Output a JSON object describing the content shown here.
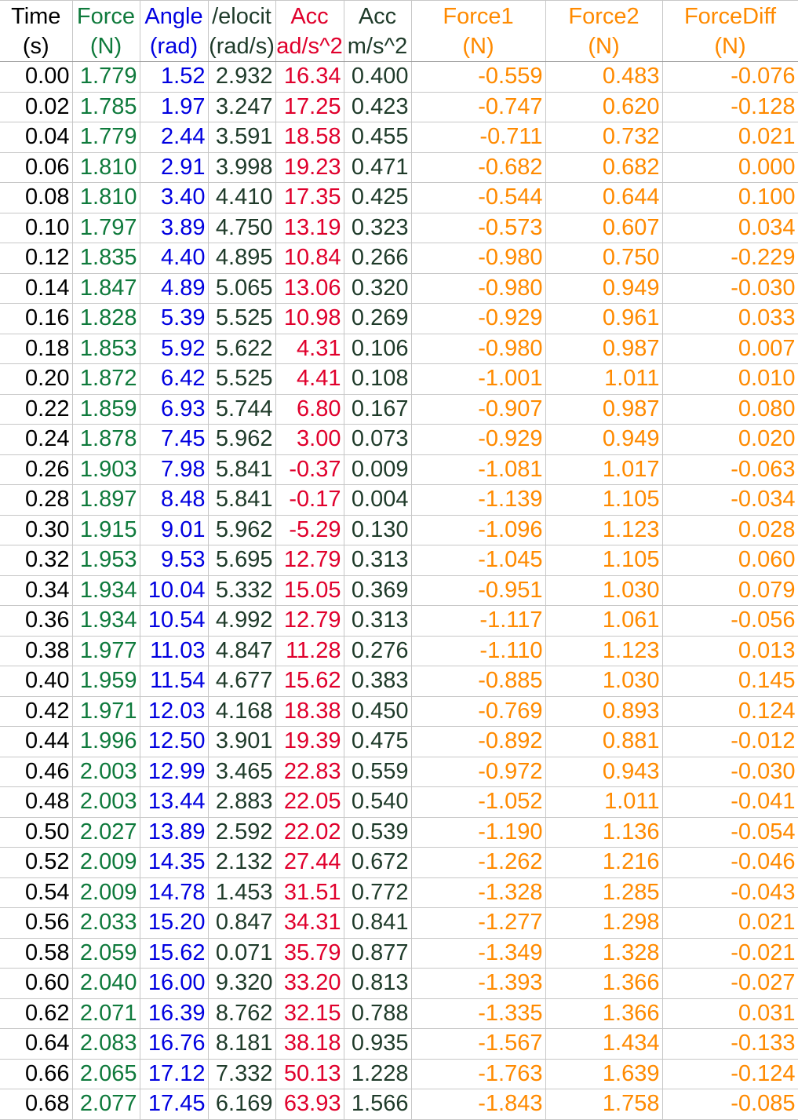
{
  "columns": [
    {
      "key": "time",
      "line1": "Time",
      "line2": "(s)",
      "color": "#000000"
    },
    {
      "key": "force",
      "line1": "Force",
      "line2": "(N)",
      "color": "#0f7a3c"
    },
    {
      "key": "angle",
      "line1": "Angle",
      "line2": "(rad)",
      "color": "#0000e0"
    },
    {
      "key": "velocity",
      "line1": "/elocit",
      "line2": "(rad/s)",
      "color": "#1f3b2a"
    },
    {
      "key": "acc_ang",
      "line1": "Acc",
      "line2": "ad/s^2",
      "color": "#e0002c"
    },
    {
      "key": "acc_lin",
      "line1": "Acc",
      "line2": "m/s^2",
      "color": "#1f3b2a"
    },
    {
      "key": "force1",
      "line1": "Force1",
      "line2": "(N)",
      "color": "#ff8a00"
    },
    {
      "key": "force2",
      "line1": "Force2",
      "line2": "(N)",
      "color": "#ff8a00"
    },
    {
      "key": "forcediff",
      "line1": "ForceDiff",
      "line2": "(N)",
      "color": "#ff8a00"
    }
  ],
  "rows": [
    [
      "0.00",
      "1.779",
      "1.52",
      "2.932",
      "16.34",
      "0.400",
      "-0.559",
      "0.483",
      "-0.076"
    ],
    [
      "0.02",
      "1.785",
      "1.97",
      "3.247",
      "17.25",
      "0.423",
      "-0.747",
      "0.620",
      "-0.128"
    ],
    [
      "0.04",
      "1.779",
      "2.44",
      "3.591",
      "18.58",
      "0.455",
      "-0.711",
      "0.732",
      "0.021"
    ],
    [
      "0.06",
      "1.810",
      "2.91",
      "3.998",
      "19.23",
      "0.471",
      "-0.682",
      "0.682",
      "0.000"
    ],
    [
      "0.08",
      "1.810",
      "3.40",
      "4.410",
      "17.35",
      "0.425",
      "-0.544",
      "0.644",
      "0.100"
    ],
    [
      "0.10",
      "1.797",
      "3.89",
      "4.750",
      "13.19",
      "0.323",
      "-0.573",
      "0.607",
      "0.034"
    ],
    [
      "0.12",
      "1.835",
      "4.40",
      "4.895",
      "10.84",
      "0.266",
      "-0.980",
      "0.750",
      "-0.229"
    ],
    [
      "0.14",
      "1.847",
      "4.89",
      "5.065",
      "13.06",
      "0.320",
      "-0.980",
      "0.949",
      "-0.030"
    ],
    [
      "0.16",
      "1.828",
      "5.39",
      "5.525",
      "10.98",
      "0.269",
      "-0.929",
      "0.961",
      "0.033"
    ],
    [
      "0.18",
      "1.853",
      "5.92",
      "5.622",
      "4.31",
      "0.106",
      "-0.980",
      "0.987",
      "0.007"
    ],
    [
      "0.20",
      "1.872",
      "6.42",
      "5.525",
      "4.41",
      "0.108",
      "-1.001",
      "1.011",
      "0.010"
    ],
    [
      "0.22",
      "1.859",
      "6.93",
      "5.744",
      "6.80",
      "0.167",
      "-0.907",
      "0.987",
      "0.080"
    ],
    [
      "0.24",
      "1.878",
      "7.45",
      "5.962",
      "3.00",
      "0.073",
      "-0.929",
      "0.949",
      "0.020"
    ],
    [
      "0.26",
      "1.903",
      "7.98",
      "5.841",
      "-0.37",
      "0.009",
      "-1.081",
      "1.017",
      "-0.063"
    ],
    [
      "0.28",
      "1.897",
      "8.48",
      "5.841",
      "-0.17",
      "0.004",
      "-1.139",
      "1.105",
      "-0.034"
    ],
    [
      "0.30",
      "1.915",
      "9.01",
      "5.962",
      "-5.29",
      "0.130",
      "-1.096",
      "1.123",
      "0.028"
    ],
    [
      "0.32",
      "1.953",
      "9.53",
      "5.695",
      "12.79",
      "0.313",
      "-1.045",
      "1.105",
      "0.060"
    ],
    [
      "0.34",
      "1.934",
      "10.04",
      "5.332",
      "15.05",
      "0.369",
      "-0.951",
      "1.030",
      "0.079"
    ],
    [
      "0.36",
      "1.934",
      "10.54",
      "4.992",
      "12.79",
      "0.313",
      "-1.117",
      "1.061",
      "-0.056"
    ],
    [
      "0.38",
      "1.977",
      "11.03",
      "4.847",
      "11.28",
      "0.276",
      "-1.110",
      "1.123",
      "0.013"
    ],
    [
      "0.40",
      "1.959",
      "11.54",
      "4.677",
      "15.62",
      "0.383",
      "-0.885",
      "1.030",
      "0.145"
    ],
    [
      "0.42",
      "1.971",
      "12.03",
      "4.168",
      "18.38",
      "0.450",
      "-0.769",
      "0.893",
      "0.124"
    ],
    [
      "0.44",
      "1.996",
      "12.50",
      "3.901",
      "19.39",
      "0.475",
      "-0.892",
      "0.881",
      "-0.012"
    ],
    [
      "0.46",
      "2.003",
      "12.99",
      "3.465",
      "22.83",
      "0.559",
      "-0.972",
      "0.943",
      "-0.030"
    ],
    [
      "0.48",
      "2.003",
      "13.44",
      "2.883",
      "22.05",
      "0.540",
      "-1.052",
      "1.011",
      "-0.041"
    ],
    [
      "0.50",
      "2.027",
      "13.89",
      "2.592",
      "22.02",
      "0.539",
      "-1.190",
      "1.136",
      "-0.054"
    ],
    [
      "0.52",
      "2.009",
      "14.35",
      "2.132",
      "27.44",
      "0.672",
      "-1.262",
      "1.216",
      "-0.046"
    ],
    [
      "0.54",
      "2.009",
      "14.78",
      "1.453",
      "31.51",
      "0.772",
      "-1.328",
      "1.285",
      "-0.043"
    ],
    [
      "0.56",
      "2.033",
      "15.20",
      "0.847",
      "34.31",
      "0.841",
      "-1.277",
      "1.298",
      "0.021"
    ],
    [
      "0.58",
      "2.059",
      "15.62",
      "0.071",
      "35.79",
      "0.877",
      "-1.349",
      "1.328",
      "-0.021"
    ],
    [
      "0.60",
      "2.040",
      "16.00",
      "9.320",
      "33.20",
      "0.813",
      "-1.393",
      "1.366",
      "-0.027"
    ],
    [
      "0.62",
      "2.071",
      "16.39",
      "8.762",
      "32.15",
      "0.788",
      "-1.335",
      "1.366",
      "0.031"
    ],
    [
      "0.64",
      "2.083",
      "16.76",
      "8.181",
      "38.18",
      "0.935",
      "-1.567",
      "1.434",
      "-0.133"
    ],
    [
      "0.66",
      "2.065",
      "17.12",
      "7.332",
      "50.13",
      "1.228",
      "-1.763",
      "1.639",
      "-0.124"
    ],
    [
      "0.68",
      "2.077",
      "17.45",
      "6.169",
      "63.93",
      "1.566",
      "-1.843",
      "1.758",
      "-0.085"
    ]
  ]
}
